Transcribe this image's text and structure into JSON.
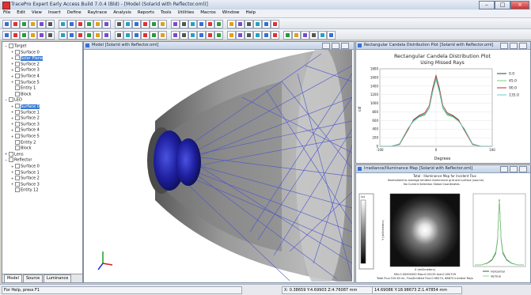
{
  "window": {
    "title": "TracePro Expert  Early Access Build 7.0.4 (Bld) - [Model (Solarid with Reflector.oml)]"
  },
  "menu": [
    "File",
    "Edit",
    "View",
    "Insert",
    "Define",
    "Raytrace",
    "Analysis",
    "Reports",
    "Tools",
    "Utilities",
    "Macros",
    "Window",
    "Help"
  ],
  "tree": [
    {
      "label": "Target",
      "indent": 0,
      "exp": "−"
    },
    {
      "label": "Surface 0",
      "indent": 1,
      "exp": "+"
    },
    {
      "label": "Solar Plane",
      "indent": 1,
      "exp": "+",
      "selected": true
    },
    {
      "label": "Surface 2",
      "indent": 1,
      "exp": "+"
    },
    {
      "label": "Surface 3",
      "indent": 1,
      "exp": "+"
    },
    {
      "label": "Surface 4",
      "indent": 1,
      "exp": "+"
    },
    {
      "label": "Surface 5",
      "indent": 1,
      "exp": "+"
    },
    {
      "label": "Entity 1",
      "indent": 1,
      "exp": ""
    },
    {
      "label": "Block",
      "indent": 1,
      "exp": ""
    },
    {
      "label": "LED",
      "indent": 0,
      "exp": "−"
    },
    {
      "label": "Surface 0",
      "indent": 1,
      "exp": "+",
      "selected": true
    },
    {
      "label": "Surface 1",
      "indent": 1,
      "exp": "+"
    },
    {
      "label": "Surface 2",
      "indent": 1,
      "exp": "+"
    },
    {
      "label": "Surface 3",
      "indent": 1,
      "exp": "+"
    },
    {
      "label": "Surface 4",
      "indent": 1,
      "exp": "+"
    },
    {
      "label": "Surface 5",
      "indent": 1,
      "exp": "+"
    },
    {
      "label": "Entity 2",
      "indent": 1,
      "exp": ""
    },
    {
      "label": "Block",
      "indent": 1,
      "exp": ""
    },
    {
      "label": "Lens",
      "indent": 0,
      "exp": "+"
    },
    {
      "label": "Reflector",
      "indent": 0,
      "exp": "−"
    },
    {
      "label": "Surface 0",
      "indent": 1,
      "exp": "+"
    },
    {
      "label": "Surface 1",
      "indent": 1,
      "exp": "+"
    },
    {
      "label": "Surface 2",
      "indent": 1,
      "exp": "+"
    },
    {
      "label": "Surface 3",
      "indent": 1,
      "exp": "+"
    },
    {
      "label": "Entity 12",
      "indent": 1,
      "exp": ""
    }
  ],
  "tabs": [
    "Model",
    "Source",
    "Luminance"
  ],
  "model_window": {
    "title": "Model [Solarid with Reflector.oml]"
  },
  "rect_window": {
    "title": "Rectangular Candela Distribution Plot [Solarid with Reflector.oml]",
    "plot_title": "Rectangular Candela Distribution Plot",
    "plot_subtitle": "Using Missed Rays",
    "xlabel": "Degrees",
    "ylabel": "cd"
  },
  "irr_window": {
    "title": "Irradiance/Illuminance Map [Solarid with Reflector.oml]",
    "head1": "Total - Illuminance Map for Incident Flux",
    "head2": "Normalized to average emitted illuminance grid and surface (source)",
    "head3": "No Current Selection        Global Coordinates",
    "footer1": "Min:0.00000000   Max:0.00135   Ave:0.000709",
    "footer2": "Total Flux:315.83 lm, Flux/Emitted Flux:0.96274, 68875 Incident Rays",
    "scale_label": "lux",
    "map_xlabel": "X (millimeters)",
    "map_ylabel": "Y (millimeters)",
    "legend": [
      "Horizontal",
      "Vertical"
    ]
  },
  "colors": {
    "led": "#1d1d9a",
    "rays": "#4a55cc",
    "reflector": "#8a8a8a",
    "bg": "#ffffff",
    "select": "#3a7bd5"
  },
  "chart_data": [
    {
      "type": "line",
      "title": "Rectangular Candela Distribution Plot",
      "subtitle": "Using Missed Rays",
      "xlabel": "Degrees",
      "ylabel": "cd",
      "xlim": [
        -100,
        100
      ],
      "ylim": [
        0,
        1800
      ],
      "yticks": [
        0,
        200,
        400,
        600,
        800,
        1000,
        1200,
        1400,
        1600,
        1800
      ],
      "xticks": [
        -100,
        0,
        100
      ],
      "series": [
        {
          "name": "0.0",
          "color": "#1b4f1b",
          "x": [
            -100,
            -80,
            -65,
            -50,
            -40,
            -30,
            -20,
            -12,
            -6,
            0,
            6,
            12,
            20,
            30,
            40,
            50,
            65,
            80,
            100
          ],
          "y": [
            0,
            0,
            50,
            400,
            600,
            700,
            750,
            900,
            1300,
            1600,
            1300,
            900,
            750,
            700,
            600,
            400,
            50,
            0,
            0
          ]
        },
        {
          "name": "45.0",
          "color": "#7ad17a",
          "x": [
            -100,
            -80,
            -65,
            -50,
            -40,
            -30,
            -20,
            -12,
            -6,
            0,
            6,
            12,
            20,
            30,
            40,
            50,
            65,
            80,
            100
          ],
          "y": [
            0,
            0,
            60,
            420,
            580,
            680,
            720,
            880,
            1250,
            1550,
            1250,
            880,
            720,
            680,
            580,
            420,
            60,
            0,
            0
          ]
        },
        {
          "name": "90.0",
          "color": "#b03030",
          "x": [
            -100,
            -80,
            -65,
            -50,
            -40,
            -30,
            -20,
            -12,
            -6,
            0,
            6,
            12,
            20,
            30,
            40,
            50,
            65,
            80,
            100
          ],
          "y": [
            0,
            0,
            40,
            380,
            620,
            720,
            780,
            950,
            1350,
            1650,
            1350,
            950,
            780,
            720,
            620,
            380,
            40,
            0,
            0
          ]
        },
        {
          "name": "135.0",
          "color": "#66cccc",
          "x": [
            -100,
            -80,
            -65,
            -50,
            -40,
            -30,
            -20,
            -12,
            -6,
            0,
            6,
            12,
            20,
            30,
            40,
            50,
            65,
            80,
            100
          ],
          "y": [
            0,
            0,
            55,
            410,
            590,
            690,
            740,
            900,
            1280,
            1580,
            1280,
            900,
            740,
            690,
            590,
            410,
            55,
            0,
            0
          ]
        }
      ],
      "legend_position": "right"
    },
    {
      "type": "line",
      "xlim": [
        -40,
        40
      ],
      "series": [
        {
          "name": "Horizontal",
          "color": "#2a6e2a",
          "x": [
            -40,
            -30,
            -20,
            -12,
            -6,
            -3,
            0,
            3,
            6,
            12,
            20,
            30,
            40
          ],
          "y": [
            0,
            0,
            20,
            60,
            140,
            300,
            800,
            300,
            140,
            60,
            20,
            0,
            0
          ]
        },
        {
          "name": "Vertical",
          "color": "#8fd48f",
          "x": [
            -40,
            -30,
            -20,
            -12,
            -6,
            -3,
            0,
            3,
            6,
            12,
            20,
            30,
            40
          ],
          "y": [
            0,
            0,
            25,
            70,
            160,
            320,
            780,
            320,
            160,
            70,
            25,
            0,
            0
          ]
        }
      ],
      "legend_position": "bottom"
    }
  ],
  "statusbar": {
    "help": "For Help, press F1",
    "coords1": "X: 0.38659 Y:4.69903 Z:4.76087 mm",
    "coords2": "14.69086 Y:18.98673 Z:1.47854 mm"
  }
}
